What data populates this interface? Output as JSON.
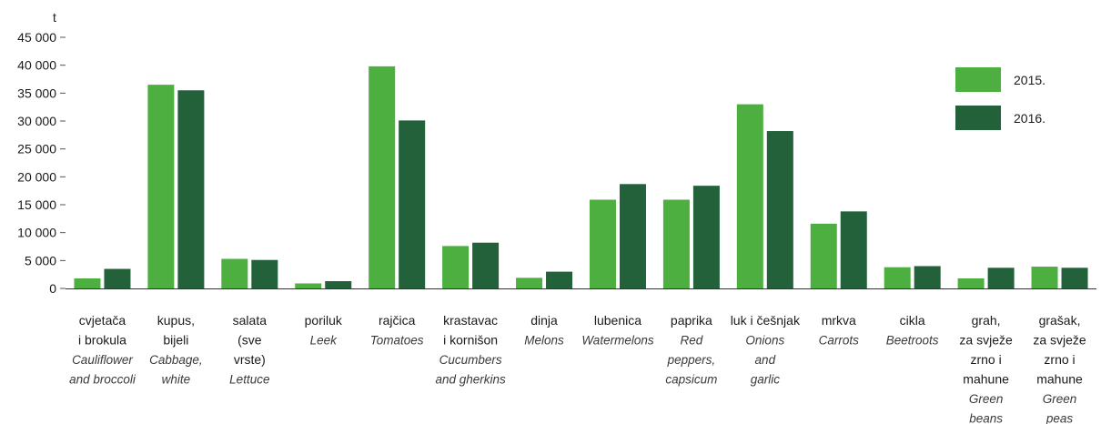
{
  "chart_data": {
    "type": "bar",
    "unit": "t",
    "ylim": [
      0,
      45000
    ],
    "yticks": [
      0,
      5000,
      10000,
      15000,
      20000,
      25000,
      30000,
      35000,
      40000,
      45000
    ],
    "ytick_labels": [
      "0",
      "5 000",
      "10 000",
      "15 000",
      "20 000",
      "25 000",
      "30 000",
      "35 000",
      "40 000",
      "45 000"
    ],
    "grid": false,
    "legend_position": "top-right",
    "colors": {
      "2015.": "#4caf3f",
      "2016.": "#22613a"
    },
    "categories": [
      {
        "hr": [
          "cvjetača",
          "i brokula"
        ],
        "en": [
          "Cauliflower",
          "and broccoli"
        ]
      },
      {
        "hr": [
          "kupus,",
          "bijeli"
        ],
        "en": [
          "Cabbage,",
          "white"
        ]
      },
      {
        "hr": [
          "salata",
          "(sve",
          "vrste)"
        ],
        "en": [
          "Lettuce"
        ]
      },
      {
        "hr": [
          "poriluk"
        ],
        "en": [
          "Leek"
        ]
      },
      {
        "hr": [
          "rajčica"
        ],
        "en": [
          "Tomatoes"
        ]
      },
      {
        "hr": [
          "krastavac",
          "i kornišon"
        ],
        "en": [
          "Cucumbers",
          "and gherkins"
        ]
      },
      {
        "hr": [
          "dinja"
        ],
        "en": [
          "Melons"
        ]
      },
      {
        "hr": [
          "lubenica"
        ],
        "en": [
          "Watermelons"
        ]
      },
      {
        "hr": [
          "paprika"
        ],
        "en": [
          "Red",
          "peppers,",
          "capsicum"
        ]
      },
      {
        "hr": [
          "luk i češnjak"
        ],
        "en": [
          "Onions",
          "and",
          "garlic"
        ]
      },
      {
        "hr": [
          "mrkva"
        ],
        "en": [
          "Carrots"
        ]
      },
      {
        "hr": [
          "cikla"
        ],
        "en": [
          "Beetroots"
        ]
      },
      {
        "hr": [
          "grah,",
          "za svježe",
          "zrno i",
          "mahune"
        ],
        "en": [
          "Green",
          "beans"
        ]
      },
      {
        "hr": [
          "grašak,",
          "za svježe",
          "zrno i",
          "mahune"
        ],
        "en": [
          "Green",
          "peas"
        ]
      }
    ],
    "series": [
      {
        "name": "2015.",
        "values": [
          1800,
          36500,
          5300,
          900,
          39800,
          7600,
          1900,
          15900,
          15900,
          33000,
          11600,
          3800,
          1800,
          3900
        ]
      },
      {
        "name": "2016.",
        "values": [
          3500,
          35500,
          5100,
          1300,
          30100,
          8200,
          3000,
          18700,
          18400,
          28200,
          13800,
          4000,
          3700,
          3700
        ]
      }
    ]
  }
}
